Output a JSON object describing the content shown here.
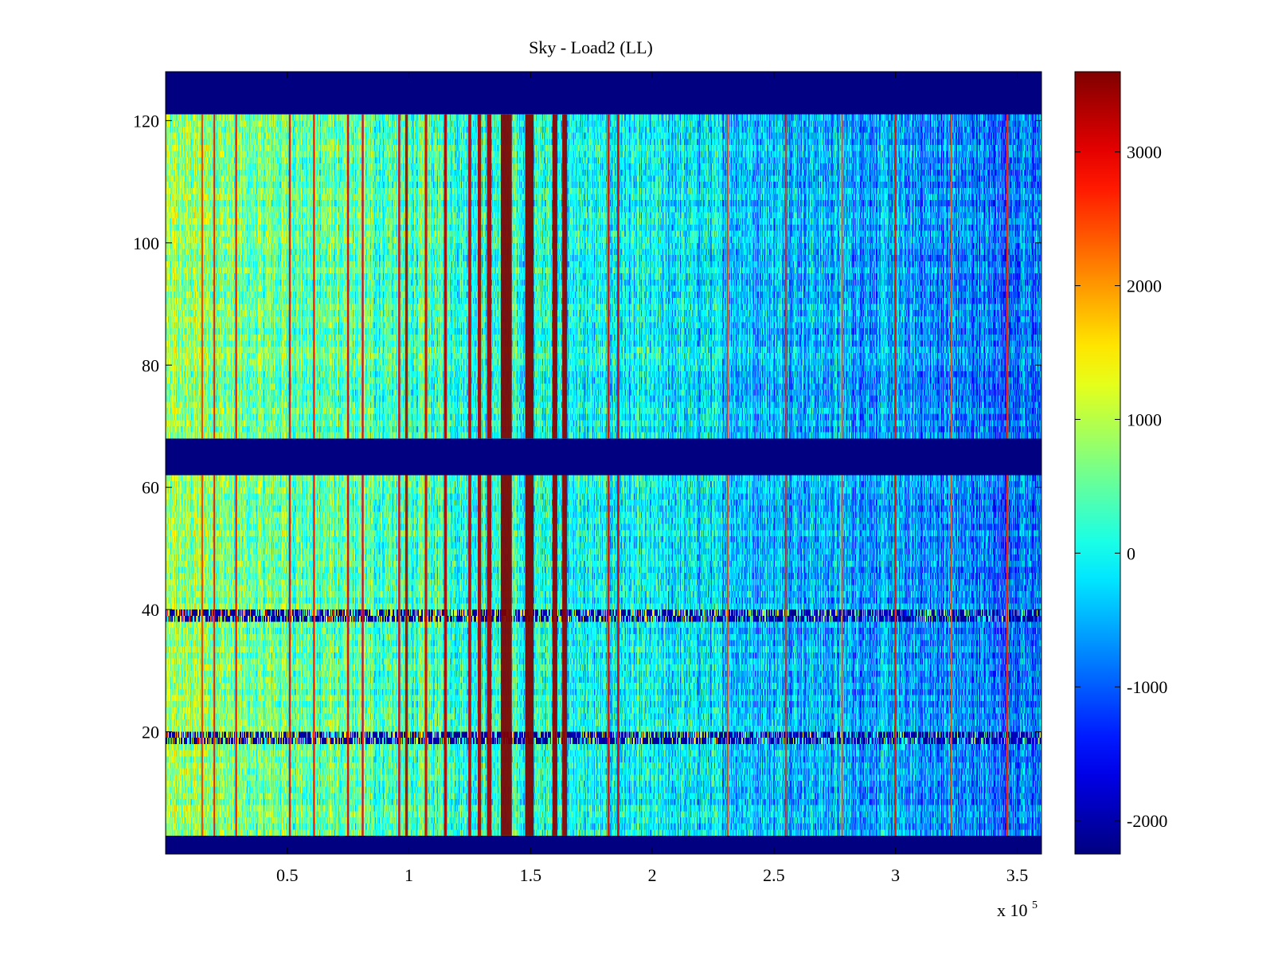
{
  "chart_data": {
    "type": "heatmap",
    "title": "Sky - Load2 (LL)",
    "xlabel": "",
    "ylabel": "",
    "x_multiplier_label": "x 10",
    "x_multiplier_exponent": "5",
    "xlim": [
      0,
      360000
    ],
    "ylim": [
      0,
      128
    ],
    "x_ticks": [
      50000,
      100000,
      150000,
      200000,
      250000,
      300000,
      350000
    ],
    "x_tick_labels": [
      "0.5",
      "1",
      "1.5",
      "2",
      "2.5",
      "3",
      "3.5"
    ],
    "y_ticks": [
      20,
      40,
      60,
      80,
      100,
      120
    ],
    "y_tick_labels": [
      "20",
      "40",
      "60",
      "80",
      "100",
      "120"
    ],
    "colormap": "jet",
    "clim": [
      -2250,
      3600
    ],
    "colorbar": {
      "ticks": [
        -2000,
        -1000,
        0,
        1000,
        2000,
        3000
      ],
      "tick_labels": [
        "-2000",
        "-1000",
        "0",
        "1000",
        "2000",
        "3000"
      ],
      "placement": "right"
    },
    "blank_row_bands": [
      {
        "from": 0,
        "to": 3,
        "value": -2250
      },
      {
        "from": 62,
        "to": 68,
        "value": -2250
      },
      {
        "from": 121,
        "to": 128,
        "value": -2250
      }
    ],
    "noisy_rows": [
      19,
      39
    ],
    "bright_columns": [
      {
        "x": 140000,
        "width": 4500,
        "value": 3600
      },
      {
        "x": 149500,
        "width": 3500,
        "value": 3600
      },
      {
        "x": 160000,
        "width": 2000,
        "value": 3500
      },
      {
        "x": 164000,
        "width": 2000,
        "value": 3500
      },
      {
        "x": 133000,
        "width": 1800,
        "value": 3400
      },
      {
        "x": 129000,
        "width": 1400,
        "value": 3300
      },
      {
        "x": 125000,
        "width": 1200,
        "value": 3200
      },
      {
        "x": 115000,
        "width": 1200,
        "value": 3300
      },
      {
        "x": 107000,
        "width": 1000,
        "value": 3100
      },
      {
        "x": 99000,
        "width": 1100,
        "value": 3300
      },
      {
        "x": 96000,
        "width": 800,
        "value": 3000
      },
      {
        "x": 182000,
        "width": 900,
        "value": 2900
      },
      {
        "x": 186000,
        "width": 900,
        "value": 3000
      },
      {
        "x": 81000,
        "width": 800,
        "value": 2900
      },
      {
        "x": 75000,
        "width": 800,
        "value": 3000
      },
      {
        "x": 61000,
        "width": 700,
        "value": 2900
      },
      {
        "x": 51000,
        "width": 700,
        "value": 3000
      },
      {
        "x": 29000,
        "width": 700,
        "value": 3000
      },
      {
        "x": 20000,
        "width": 600,
        "value": 2800
      },
      {
        "x": 15000,
        "width": 600,
        "value": 2600
      },
      {
        "x": 231000,
        "width": 700,
        "value": 2500
      },
      {
        "x": 255000,
        "width": 600,
        "value": 2700
      },
      {
        "x": 278000,
        "width": 600,
        "value": 2300
      },
      {
        "x": 300000,
        "width": 800,
        "value": 2800
      },
      {
        "x": 323000,
        "width": 600,
        "value": 2400
      },
      {
        "x": 346000,
        "width": 800,
        "value": 2700
      }
    ]
  }
}
